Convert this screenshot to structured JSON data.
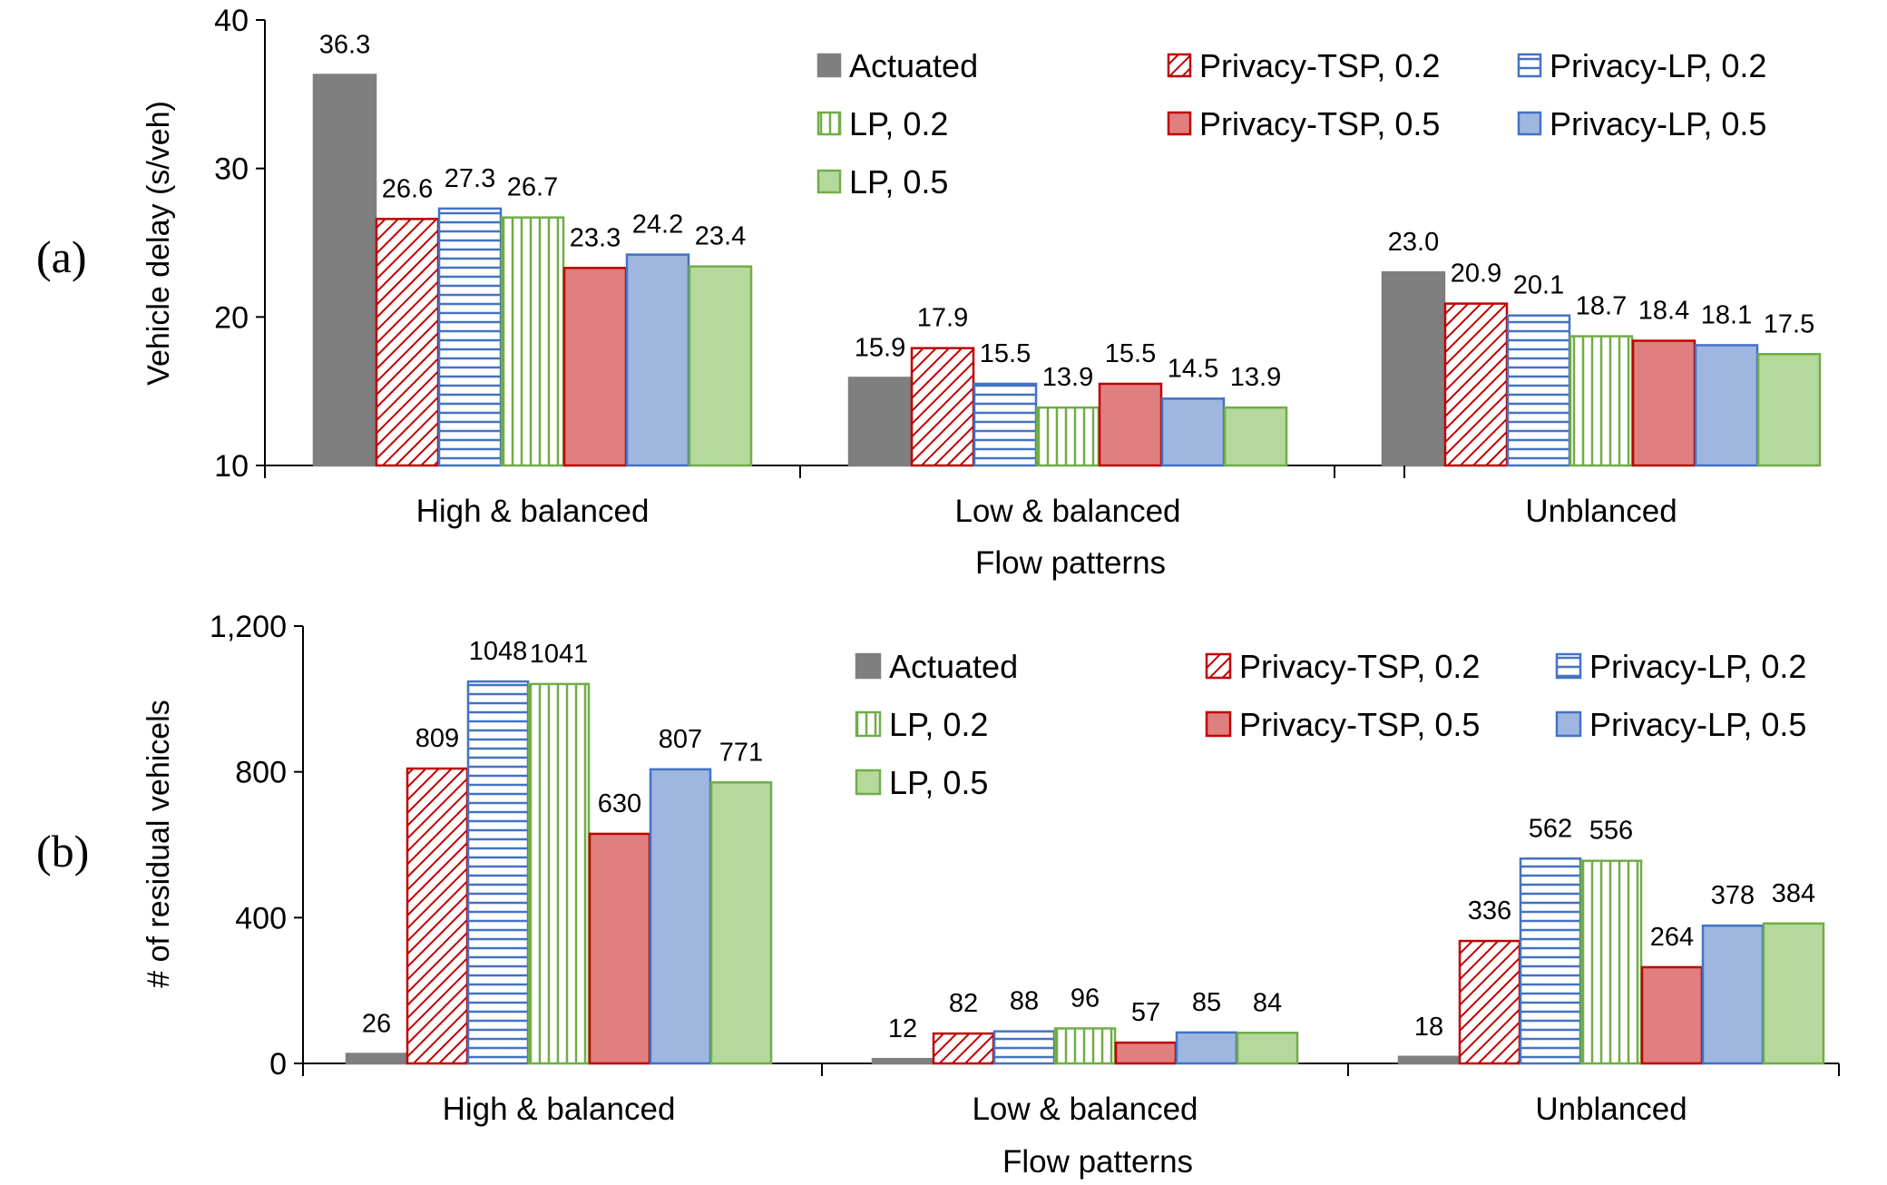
{
  "chart_data": [
    {
      "type": "bar",
      "panel": "(a)",
      "categories": [
        "High & balanced",
        "Low & balanced",
        "Unblanced"
      ],
      "xlabel": "Flow patterns",
      "ylabel": "Vehicle delay (s/veh)",
      "ylim": [
        10,
        40
      ],
      "yticks": [
        "10",
        "20",
        "30",
        "40"
      ],
      "ytick_values": [
        10,
        20,
        30,
        40
      ],
      "legend_position": "top-right",
      "series": [
        {
          "name": "Actuated",
          "style": "solid-gray",
          "values": [
            36.3,
            15.9,
            23.0
          ],
          "labels": [
            "36.3",
            "15.9",
            "23.0"
          ]
        },
        {
          "name": "Privacy-TSP, 0.2",
          "style": "hatch-red",
          "values": [
            26.6,
            17.9,
            20.9
          ],
          "labels": [
            "26.6",
            "17.9",
            "20.9"
          ]
        },
        {
          "name": "Privacy-LP, 0.2",
          "style": "hlines-blue",
          "values": [
            27.3,
            15.5,
            20.1
          ],
          "labels": [
            "27.3",
            "15.5",
            "20.1"
          ]
        },
        {
          "name": "LP, 0.2",
          "style": "vlines-green",
          "values": [
            26.7,
            13.9,
            18.7
          ],
          "labels": [
            "26.7",
            "13.9",
            "18.7"
          ]
        },
        {
          "name": "Privacy-TSP, 0.5",
          "style": "solid-red",
          "values": [
            23.3,
            15.5,
            18.4
          ],
          "labels": [
            "23.3",
            "15.5",
            "18.4"
          ]
        },
        {
          "name": "Privacy-LP, 0.5",
          "style": "solid-blue",
          "values": [
            24.2,
            14.5,
            18.1
          ],
          "labels": [
            "24.2",
            "14.5",
            "18.1"
          ]
        },
        {
          "name": "LP, 0.5",
          "style": "solid-green",
          "values": [
            23.4,
            13.9,
            17.5
          ],
          "labels": [
            "23.4",
            "13.9",
            "17.5"
          ]
        }
      ]
    },
    {
      "type": "bar",
      "panel": "(b)",
      "categories": [
        "High & balanced",
        "Low & balanced",
        "Unblanced"
      ],
      "xlabel": "Flow patterns",
      "ylabel": "# of residual vehicels",
      "ylim": [
        0,
        1200
      ],
      "yticks": [
        "0",
        "400",
        "800",
        "1,200"
      ],
      "ytick_values": [
        0,
        400,
        800,
        1200
      ],
      "legend_position": "top-right",
      "series": [
        {
          "name": "Actuated",
          "style": "solid-gray",
          "values": [
            26,
            12,
            18
          ],
          "labels": [
            "26",
            "12",
            "18"
          ]
        },
        {
          "name": "Privacy-TSP, 0.2",
          "style": "hatch-red",
          "values": [
            809,
            82,
            336
          ],
          "labels": [
            "809",
            "82",
            "336"
          ]
        },
        {
          "name": "Privacy-LP, 0.2",
          "style": "hlines-blue",
          "values": [
            1048,
            88,
            562
          ],
          "labels": [
            "1048",
            "88",
            "562"
          ]
        },
        {
          "name": "LP, 0.2",
          "style": "vlines-green",
          "values": [
            1041,
            96,
            556
          ],
          "labels": [
            "1041",
            "96",
            "556"
          ]
        },
        {
          "name": "Privacy-TSP, 0.5",
          "style": "solid-red",
          "values": [
            630,
            57,
            264
          ],
          "labels": [
            "630",
            "57",
            "264"
          ]
        },
        {
          "name": "Privacy-LP, 0.5",
          "style": "solid-blue",
          "values": [
            807,
            85,
            378
          ],
          "labels": [
            "807",
            "85",
            "378"
          ]
        },
        {
          "name": "LP, 0.5",
          "style": "solid-green",
          "values": [
            771,
            84,
            384
          ],
          "labels": [
            "771",
            "84",
            "384"
          ]
        }
      ]
    }
  ],
  "colors": {
    "gray": "#7f7f7f",
    "red": "#e07f7f",
    "red_edge": "#c00000",
    "blue": "#9fb6e0",
    "blue_edge": "#4472c4",
    "green": "#b5d99c",
    "green_edge": "#70ad47",
    "white": "#ffffff"
  }
}
